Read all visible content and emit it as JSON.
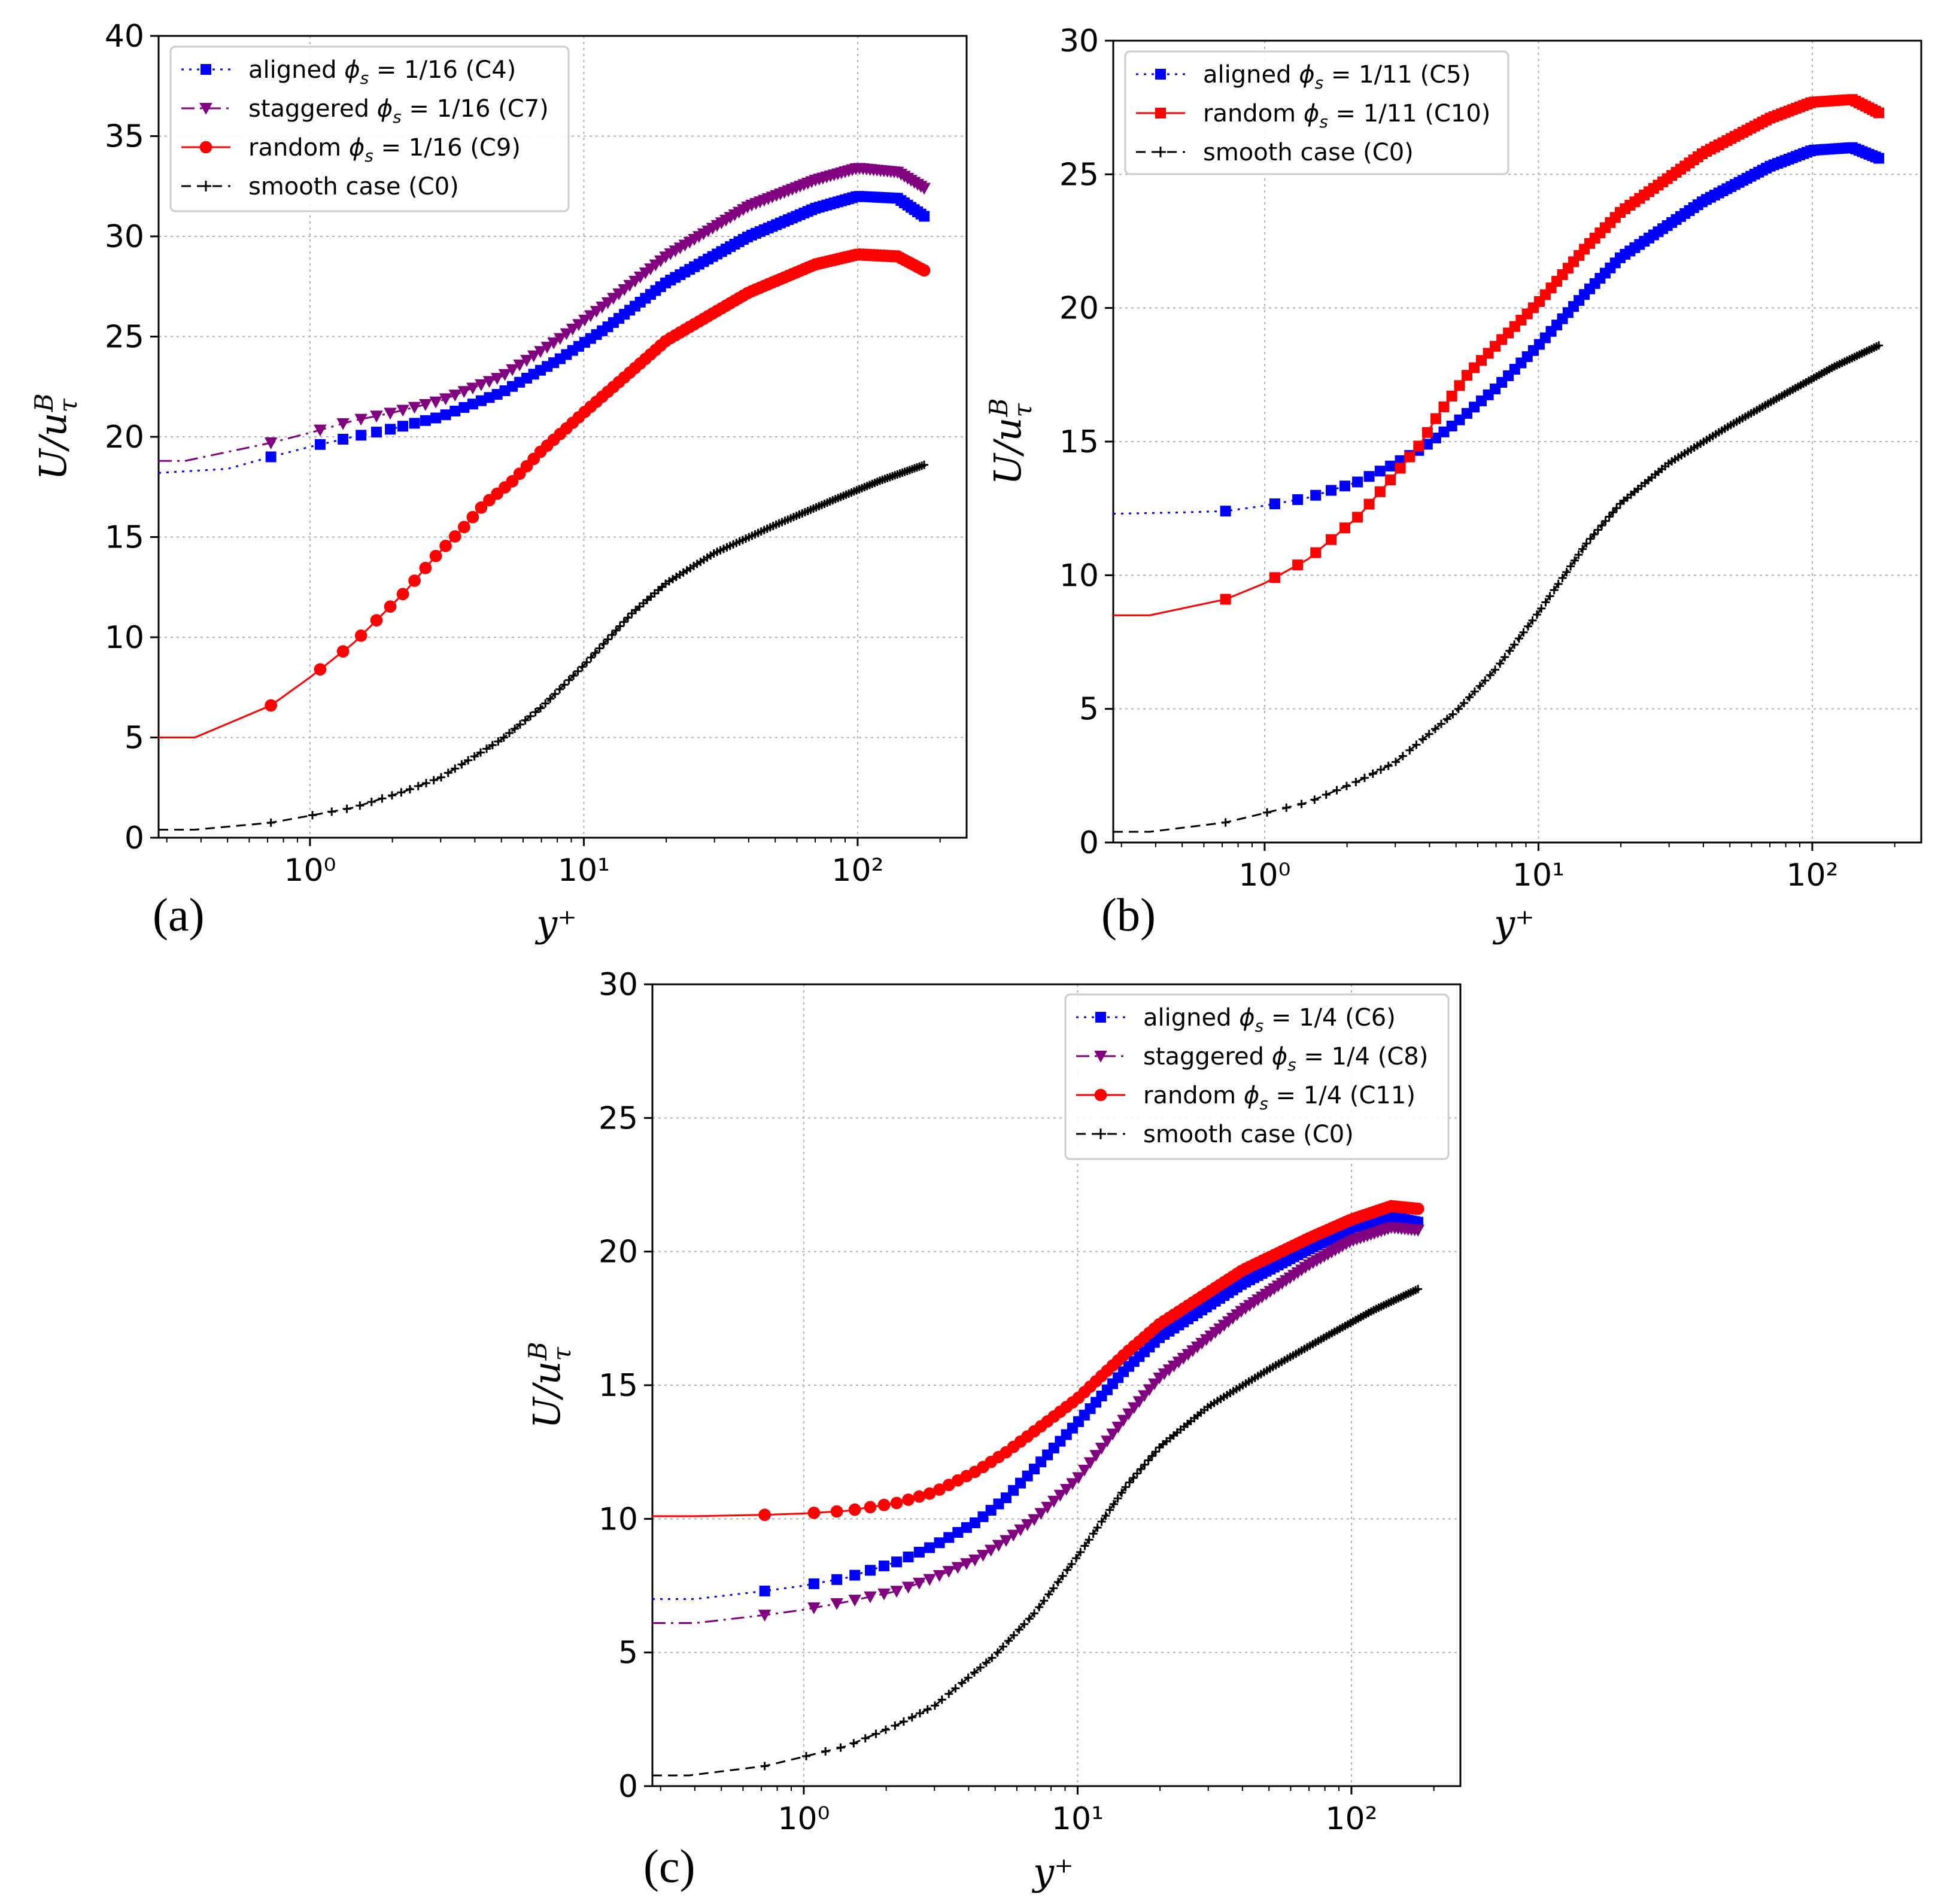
{
  "chart_data": [
    {
      "type": "line",
      "panel_label": "(a)",
      "xlabel": "y⁺",
      "ylabel": "U/uᵰᴵ (U/u_τ^B)",
      "xscale": "log",
      "xlim": [
        0.28,
        250
      ],
      "ylim": [
        0,
        40
      ],
      "yticks": [
        0,
        5,
        10,
        15,
        20,
        25,
        30,
        35,
        40
      ],
      "xticks": [
        1,
        10,
        100
      ],
      "xtick_labels": [
        "10⁰",
        "10¹",
        "10²"
      ],
      "grid": true,
      "legend_position": "top-left",
      "series": [
        {
          "name": "aligned ϕs = 1/16 (C4)",
          "legend_label": "aligned",
          "legend_param": "ϕ",
          "legend_sub": "s",
          "legend_rest": " = 1/16 (C4)",
          "color": "#0000ff",
          "dash": "dotted",
          "marker": "square",
          "x": [
            0.28,
            0.5,
            0.72,
            1.0,
            1.44,
            2.0,
            3.0,
            5.0,
            8.0,
            12.0,
            20.0,
            40.0,
            70.0,
            100.0,
            140.0,
            175.0
          ],
          "y": [
            18.2,
            18.4,
            19.0,
            19.5,
            20.0,
            20.4,
            21.0,
            22.2,
            23.8,
            25.4,
            27.7,
            30.0,
            31.4,
            32.0,
            31.9,
            31.0
          ]
        },
        {
          "name": "staggered ϕs = 1/16 (C7)",
          "legend_label": "staggered",
          "legend_param": "ϕ",
          "legend_sub": "s",
          "legend_rest": " = 1/16 (C7)",
          "color": "#800080",
          "dash": "dashdot",
          "marker": "triangle-down",
          "x": [
            0.28,
            0.35,
            0.72,
            1.0,
            1.44,
            2.0,
            3.0,
            5.0,
            8.0,
            12.0,
            20.0,
            40.0,
            70.0,
            100.0,
            140.0,
            175.0
          ],
          "y": [
            18.8,
            18.8,
            19.7,
            20.2,
            20.8,
            21.2,
            21.8,
            23.0,
            24.8,
            26.6,
            29.0,
            31.5,
            32.8,
            33.4,
            33.2,
            32.4
          ]
        },
        {
          "name": "random ϕs = 1/16 (C9)",
          "legend_label": "random",
          "legend_param": "ϕ",
          "legend_sub": "s",
          "legend_rest": " = 1/16 (C9)",
          "color": "#ff0000",
          "dash": "solid",
          "marker": "circle",
          "x": [
            0.28,
            0.38,
            0.72,
            1.0,
            1.44,
            2.2,
            2.9,
            3.6,
            4.3,
            5.5,
            7.0,
            10.0,
            15.0,
            20.0,
            40.0,
            70.0,
            100.0,
            140.0,
            175.0
          ],
          "y": [
            5.0,
            5.0,
            6.6,
            8.0,
            9.7,
            12.2,
            14.1,
            15.4,
            16.6,
            17.8,
            19.3,
            21.2,
            23.3,
            24.8,
            27.2,
            28.6,
            29.1,
            29.0,
            28.3
          ]
        },
        {
          "name": "smooth case (C0)",
          "legend_label": "smooth case (C0)",
          "legend_param": "",
          "legend_sub": "",
          "legend_rest": "",
          "color": "#000000",
          "dash": "dashed",
          "marker": "plus",
          "x": [
            0.28,
            0.38,
            0.72,
            1.0,
            1.44,
            2.2,
            3.0,
            5.0,
            7.0,
            10.0,
            15.0,
            20.0,
            30.0,
            50.0,
            80.0,
            120.0,
            175.0
          ],
          "y": [
            0.4,
            0.4,
            0.75,
            1.1,
            1.5,
            2.3,
            3.0,
            4.9,
            6.5,
            8.6,
            11.2,
            12.7,
            14.2,
            15.6,
            16.8,
            17.8,
            18.6
          ]
        }
      ]
    },
    {
      "type": "line",
      "panel_label": "(b)",
      "xlabel": "y⁺",
      "ylabel": "U/uᵰᴵ (U/u_τ^B)",
      "xscale": "log",
      "xlim": [
        0.28,
        250
      ],
      "ylim": [
        0,
        30
      ],
      "yticks": [
        0,
        5,
        10,
        15,
        20,
        25,
        30
      ],
      "xticks": [
        1,
        10,
        100
      ],
      "xtick_labels": [
        "10⁰",
        "10¹",
        "10²"
      ],
      "grid": true,
      "legend_position": "top-left",
      "series": [
        {
          "name": "aligned ϕs = 1/11 (C5)",
          "legend_label": "aligned",
          "legend_param": "ϕ",
          "legend_sub": "s",
          "legend_rest": " = 1/11 (C5)",
          "color": "#0000ff",
          "dash": "dotted",
          "marker": "square",
          "x": [
            0.28,
            0.5,
            0.72,
            1.0,
            1.44,
            2.2,
            2.9,
            3.7,
            5.0,
            7.0,
            10.0,
            15.0,
            20.0,
            40.0,
            70.0,
            100.0,
            140.0,
            175.0
          ],
          "y": [
            12.3,
            12.35,
            12.4,
            12.6,
            12.9,
            13.5,
            14.1,
            14.7,
            15.7,
            17.0,
            18.6,
            20.6,
            21.9,
            24.0,
            25.3,
            25.9,
            26.0,
            25.6
          ]
        },
        {
          "name": "random ϕs = 1/11 (C10)",
          "legend_label": "random",
          "legend_param": "ϕ",
          "legend_sub": "s",
          "legend_rest": " = 1/11 (C10)",
          "color": "#ff0000",
          "dash": "solid",
          "marker": "square",
          "x": [
            0.28,
            0.38,
            0.72,
            1.0,
            1.44,
            2.2,
            2.9,
            3.7,
            4.3,
            5.5,
            7.0,
            10.0,
            15.0,
            20.0,
            40.0,
            70.0,
            100.0,
            140.0,
            175.0
          ],
          "y": [
            8.5,
            8.5,
            9.1,
            9.7,
            10.6,
            12.2,
            13.6,
            14.9,
            16.0,
            17.5,
            18.6,
            20.2,
            22.3,
            23.6,
            25.8,
            27.1,
            27.7,
            27.8,
            27.3
          ]
        },
        {
          "name": "smooth case (C0)",
          "legend_label": "smooth case (C0)",
          "legend_param": "",
          "legend_sub": "",
          "legend_rest": "",
          "color": "#000000",
          "dash": "dashed",
          "marker": "plus",
          "x": [
            0.28,
            0.38,
            0.72,
            1.0,
            1.44,
            2.2,
            3.0,
            5.0,
            7.0,
            10.0,
            15.0,
            20.0,
            30.0,
            50.0,
            80.0,
            120.0,
            175.0
          ],
          "y": [
            0.4,
            0.4,
            0.75,
            1.1,
            1.5,
            2.3,
            3.0,
            4.9,
            6.5,
            8.6,
            11.2,
            12.7,
            14.2,
            15.6,
            16.8,
            17.8,
            18.6
          ]
        }
      ]
    },
    {
      "type": "line",
      "panel_label": "(c)",
      "xlabel": "y⁺",
      "ylabel": "U/uᵰᴵ (U/u_τ^B)",
      "xscale": "log",
      "xlim": [
        0.28,
        250
      ],
      "ylim": [
        0,
        30
      ],
      "yticks": [
        0,
        5,
        10,
        15,
        20,
        25,
        30
      ],
      "xticks": [
        1,
        10,
        100
      ],
      "xtick_labels": [
        "10⁰",
        "10¹",
        "10²"
      ],
      "grid": true,
      "legend_position": "top-right",
      "series": [
        {
          "name": "aligned ϕs = 1/4 (C6)",
          "legend_label": "aligned",
          "legend_param": "ϕ",
          "legend_sub": "s",
          "legend_rest": " = 1/4 (C6)",
          "color": "#0000ff",
          "dash": "dotted",
          "marker": "square",
          "x": [
            0.28,
            0.4,
            0.72,
            1.0,
            1.44,
            2.2,
            3.0,
            4.3,
            5.5,
            7.0,
            10.0,
            15.0,
            20.0,
            40.0,
            70.0,
            100.0,
            140.0,
            175.0
          ],
          "y": [
            7.0,
            7.0,
            7.3,
            7.5,
            7.8,
            8.4,
            9.0,
            9.9,
            10.8,
            11.9,
            13.6,
            15.6,
            16.8,
            18.8,
            20.1,
            20.9,
            21.3,
            21.1
          ]
        },
        {
          "name": "staggered ϕs = 1/4 (C8)",
          "legend_label": "staggered",
          "legend_param": "ϕ",
          "legend_sub": "s",
          "legend_rest": " = 1/4 (C8)",
          "color": "#800080",
          "dash": "dashdot",
          "marker": "triangle-down",
          "x": [
            0.28,
            0.4,
            0.72,
            1.0,
            1.44,
            2.2,
            3.0,
            4.3,
            5.5,
            7.0,
            10.0,
            15.0,
            20.0,
            40.0,
            70.0,
            100.0,
            140.0,
            175.0
          ],
          "y": [
            6.1,
            6.1,
            6.4,
            6.6,
            6.9,
            7.3,
            7.8,
            8.5,
            9.2,
            10.0,
            11.5,
            13.8,
            15.3,
            17.8,
            19.5,
            20.4,
            20.9,
            20.8
          ]
        },
        {
          "name": "random ϕs = 1/4 (C11)",
          "legend_label": "random",
          "legend_param": "ϕ",
          "legend_sub": "s",
          "legend_rest": " = 1/4 (C11)",
          "color": "#ff0000",
          "dash": "solid",
          "marker": "circle",
          "x": [
            0.28,
            0.4,
            0.72,
            1.0,
            1.44,
            2.2,
            3.0,
            4.3,
            5.5,
            7.0,
            10.0,
            15.0,
            20.0,
            40.0,
            70.0,
            100.0,
            140.0,
            175.0
          ],
          "y": [
            10.1,
            10.1,
            10.15,
            10.2,
            10.3,
            10.6,
            11.0,
            11.8,
            12.5,
            13.3,
            14.5,
            16.2,
            17.3,
            19.3,
            20.5,
            21.2,
            21.7,
            21.6
          ]
        },
        {
          "name": "smooth case (C0)",
          "legend_label": "smooth case (C0)",
          "legend_param": "",
          "legend_sub": "",
          "legend_rest": "",
          "color": "#000000",
          "dash": "dashed",
          "marker": "plus",
          "x": [
            0.28,
            0.38,
            0.72,
            1.0,
            1.44,
            2.2,
            3.0,
            5.0,
            7.0,
            10.0,
            15.0,
            20.0,
            30.0,
            50.0,
            80.0,
            120.0,
            175.0
          ],
          "y": [
            0.4,
            0.4,
            0.75,
            1.1,
            1.5,
            2.3,
            3.0,
            4.9,
            6.5,
            8.6,
            11.2,
            12.7,
            14.2,
            15.6,
            16.8,
            17.8,
            18.6
          ]
        }
      ]
    }
  ]
}
